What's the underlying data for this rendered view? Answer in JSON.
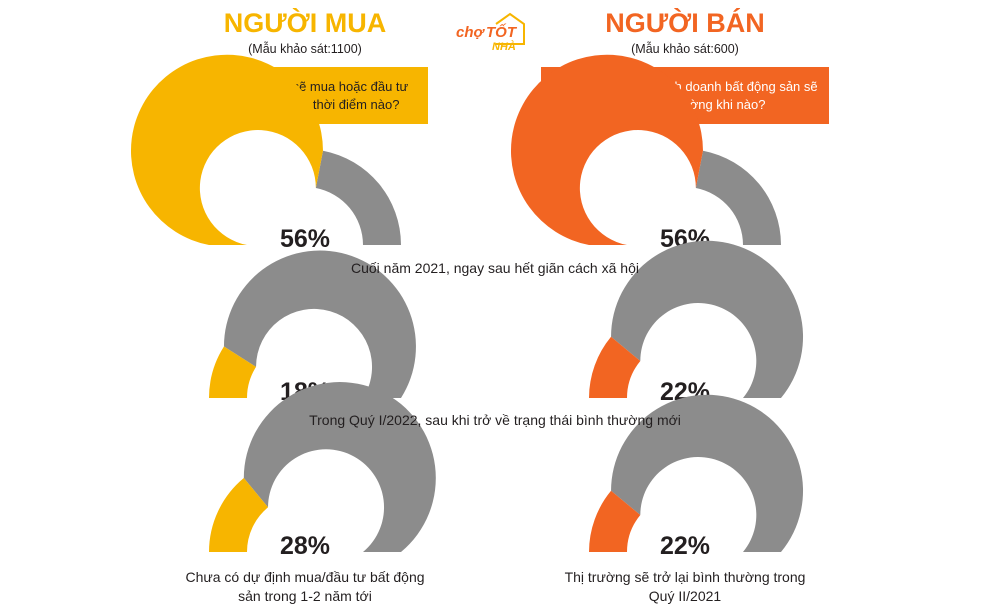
{
  "buyer": {
    "title": "NGƯỜI MUA",
    "sample": "(Mẫu khảo sát:1100)",
    "question": "Bạn có dự định sẽ mua hoặc đầu tư bất động sản vào thời điểm nào?",
    "color": "#f7b500"
  },
  "seller": {
    "title": "NGƯỜI BÁN",
    "sample": "(Mẫu khảo sát:600)",
    "question": "Bạn dự đoán việc kinh doanh bất động sản sẽ trở lại bình thường khi nào?",
    "color": "#f26522"
  },
  "logo": {
    "text1": "chợ",
    "text2": "TỐT",
    "text3": "NHÀ"
  },
  "track_color": "#8c8c8c",
  "rows": {
    "r1": {
      "label": "Cuối năm 2021, ngay sau hết giãn cách xã hội"
    },
    "r2": {
      "label": "Trong Quý I/2022, sau khi trở về trạng thái bình thường mới"
    },
    "r3": {
      "buyer_label": "Chưa có dự định mua/đầu tư bất động sản trong 1-2 năm tới",
      "seller_label": "Thị trường sẽ trở lại bình thường trong Quý II/2021"
    }
  },
  "chart_data": [
    {
      "type": "gauge",
      "group": "Người mua",
      "label": "Cuối năm 2021, ngay sau hết giãn cách xã hội",
      "value": 56,
      "display": "56%"
    },
    {
      "type": "gauge",
      "group": "Người bán",
      "label": "Cuối năm 2021, ngay sau hết giãn cách xã hội",
      "value": 56,
      "display": "56%"
    },
    {
      "type": "gauge",
      "group": "Người mua",
      "label": "Trong Quý I/2022, sau khi trở về trạng thái bình thường mới",
      "value": 18,
      "display": "18%"
    },
    {
      "type": "gauge",
      "group": "Người bán",
      "label": "Trong Quý I/2022, sau khi trở về trạng thái bình thường mới",
      "value": 22,
      "display": "22%"
    },
    {
      "type": "gauge",
      "group": "Người mua",
      "label": "Chưa có dự định mua/đầu tư bất động sản trong 1-2 năm tới",
      "value": 28,
      "display": "28%"
    },
    {
      "type": "gauge",
      "group": "Người bán",
      "label": "Thị trường sẽ trở lại bình thường trong Quý II/2021",
      "value": 22,
      "display": "22%"
    }
  ]
}
